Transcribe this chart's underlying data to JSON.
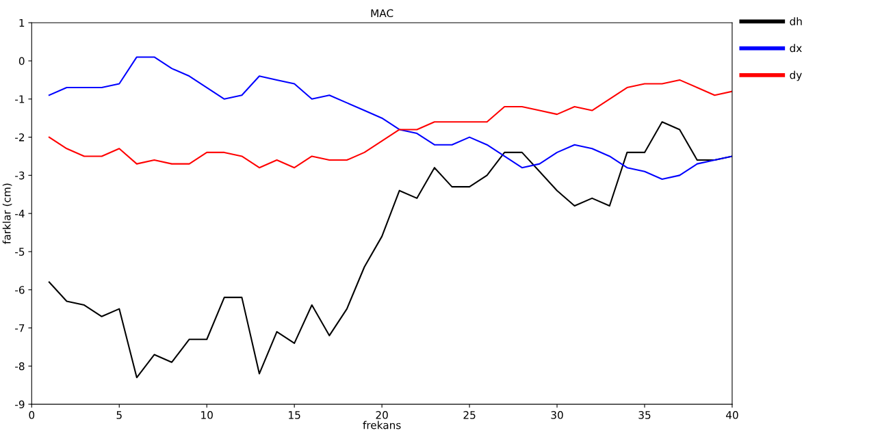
{
  "chart_data": {
    "type": "line",
    "title": "MAC",
    "xlabel": "frekans",
    "ylabel": "farklar (cm)",
    "x": [
      1,
      2,
      3,
      4,
      5,
      6,
      7,
      8,
      9,
      10,
      11,
      12,
      13,
      14,
      15,
      16,
      17,
      18,
      19,
      20,
      21,
      22,
      23,
      24,
      25,
      26,
      27,
      28,
      29,
      30,
      31,
      32,
      33,
      34,
      35,
      36,
      37,
      38,
      39,
      40
    ],
    "series": [
      {
        "name": "dh",
        "color": "#000000",
        "values": [
          -5.8,
          -6.3,
          -6.4,
          -6.7,
          -6.5,
          -8.3,
          -7.7,
          -7.9,
          -7.3,
          -7.3,
          -6.2,
          -6.2,
          -8.2,
          -7.1,
          -7.4,
          -6.4,
          -7.2,
          -6.5,
          -5.4,
          -4.6,
          -3.4,
          -3.6,
          -2.8,
          -3.3,
          -3.3,
          -3.0,
          -2.4,
          -2.4,
          -2.9,
          -3.4,
          -3.8,
          -3.6,
          -3.8,
          -2.4,
          -2.4,
          -1.6,
          -1.8,
          -2.6,
          -2.6,
          -2.5
        ]
      },
      {
        "name": "dx",
        "color": "#0000ff",
        "values": [
          -0.9,
          -0.7,
          -0.7,
          -0.7,
          -0.6,
          0.1,
          0.1,
          -0.2,
          -0.4,
          -0.7,
          -1.0,
          -0.9,
          -0.4,
          -0.5,
          -0.6,
          -1.0,
          -0.9,
          -1.1,
          -1.3,
          -1.5,
          -1.8,
          -1.9,
          -2.2,
          -2.2,
          -2.0,
          -2.2,
          -2.5,
          -2.8,
          -2.7,
          -2.4,
          -2.2,
          -2.3,
          -2.5,
          -2.8,
          -2.9,
          -3.1,
          -3.0,
          -2.7,
          -2.6,
          -2.5
        ]
      },
      {
        "name": "dy",
        "color": "#ff0000",
        "values": [
          -2.0,
          -2.3,
          -2.5,
          -2.5,
          -2.3,
          -2.7,
          -2.6,
          -2.7,
          -2.7,
          -2.4,
          -2.4,
          -2.5,
          -2.8,
          -2.6,
          -2.8,
          -2.5,
          -2.6,
          -2.6,
          -2.4,
          -2.1,
          -1.8,
          -1.8,
          -1.6,
          -1.6,
          -1.6,
          -1.6,
          -1.2,
          -1.2,
          -1.3,
          -1.4,
          -1.2,
          -1.3,
          -1.0,
          -0.7,
          -0.6,
          -0.6,
          -0.5,
          -0.7,
          -0.9,
          -0.8
        ]
      }
    ],
    "xlim": [
      0,
      40
    ],
    "xticks": [
      0,
      5,
      10,
      15,
      20,
      25,
      30,
      35,
      40
    ],
    "ylim": [
      -9,
      1
    ],
    "yticks": [
      -9,
      -8,
      -7,
      -6,
      -5,
      -4,
      -3,
      -2,
      -1,
      0,
      1
    ],
    "grid": false,
    "legend": "top right",
    "marker": "none",
    "line_style": "solid"
  }
}
